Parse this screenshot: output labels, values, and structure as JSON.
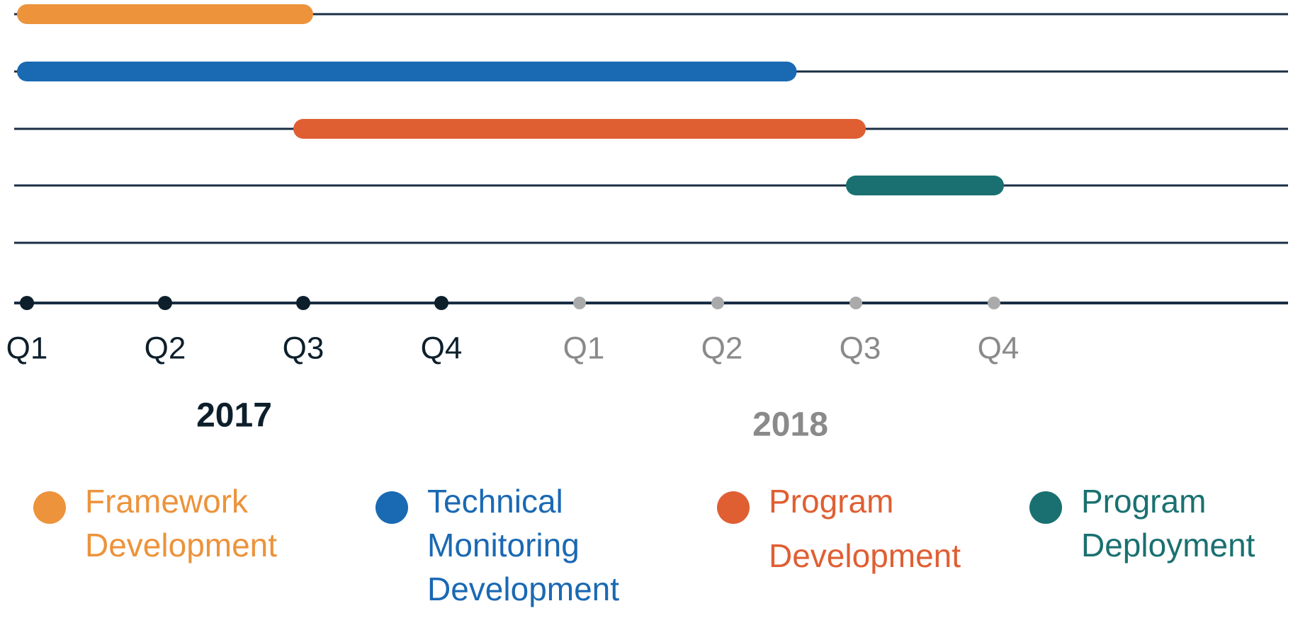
{
  "years": [
    {
      "label": "2017",
      "quarters": [
        "Q1",
        "Q2",
        "Q3",
        "Q4"
      ],
      "color": "#0d1f2b",
      "dot": "#0d1f2b"
    },
    {
      "label": "2018",
      "quarters": [
        "Q1",
        "Q2",
        "Q3",
        "Q4"
      ],
      "color": "#8a8a8a",
      "dot": "#aaaaaa"
    }
  ],
  "tasks": [
    {
      "name": [
        "Framework",
        "Development"
      ],
      "color": "#ec933b",
      "start": 0,
      "end": 2
    },
    {
      "name": [
        "Technical",
        "Monitoring",
        "Development"
      ],
      "color": "#1a69b3",
      "start": 0,
      "end": 5.5
    },
    {
      "name": [
        "Program",
        "Development"
      ],
      "color": "#df5f33",
      "start": 2,
      "end": 6
    },
    {
      "name": [
        "Program",
        "Deployment"
      ],
      "color": "#1a7070",
      "start": 6,
      "end": 7
    }
  ]
}
